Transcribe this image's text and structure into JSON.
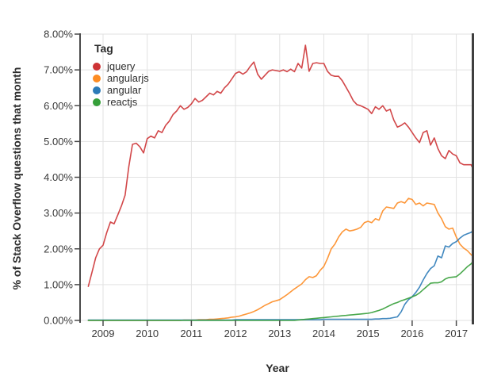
{
  "figure": {
    "background": "#ffffff",
    "colors": {
      "grid": "#e2e2e2",
      "axis_spine": "#4a4a4a",
      "right_border": "#3f3f3f",
      "tick_label_text": "#3a3a3a",
      "title_text": "#2b2b2b"
    }
  },
  "chart_data": {
    "type": "line",
    "title": "",
    "xlabel": "Year",
    "ylabel": "% of Stack Overflow questions that month",
    "legend_title": "Tag",
    "legend_position": "top-left-inside",
    "grid": true,
    "ylim": [
      0,
      8
    ],
    "xlim_years": [
      2008.51,
      2017.42
    ],
    "y_tick_labels": [
      "0.00%",
      "1.00%",
      "2.00%",
      "3.00%",
      "4.00%",
      "5.00%",
      "6.00%",
      "7.00%",
      "8.00%"
    ],
    "x_tick_labels": [
      "2009",
      "2010",
      "2011",
      "2012",
      "2013",
      "2014",
      "2015",
      "2016",
      "2017"
    ],
    "x_unit": "month",
    "x_start": "2008-09",
    "x_end": "2017-06",
    "series": [
      {
        "name": "jquery",
        "color": "#cd3335",
        "values": [
          0.95,
          1.35,
          1.75,
          2.0,
          2.1,
          2.45,
          2.75,
          2.7,
          2.95,
          3.2,
          3.5,
          4.3,
          4.92,
          4.95,
          4.85,
          4.68,
          5.08,
          5.15,
          5.1,
          5.3,
          5.25,
          5.45,
          5.57,
          5.75,
          5.85,
          6.0,
          5.9,
          5.95,
          6.05,
          6.2,
          6.1,
          6.15,
          6.25,
          6.35,
          6.3,
          6.4,
          6.35,
          6.5,
          6.6,
          6.75,
          6.9,
          6.95,
          6.88,
          6.95,
          7.1,
          7.22,
          6.88,
          6.74,
          6.85,
          6.96,
          7.0,
          6.98,
          6.96,
          7.0,
          6.95,
          7.02,
          6.95,
          7.18,
          7.05,
          7.69,
          6.96,
          7.18,
          7.2,
          7.18,
          7.18,
          6.96,
          6.85,
          6.82,
          6.82,
          6.7,
          6.52,
          6.34,
          6.14,
          6.03,
          6.0,
          5.95,
          5.9,
          5.78,
          5.97,
          5.9,
          6.0,
          5.85,
          5.9,
          5.6,
          5.4,
          5.45,
          5.52,
          5.4,
          5.25,
          5.1,
          4.97,
          5.25,
          5.3,
          4.9,
          5.1,
          4.8,
          4.6,
          4.52,
          4.75,
          4.65,
          4.6,
          4.4,
          4.35,
          4.35,
          4.35,
          4.15
        ]
      },
      {
        "name": "angularjs",
        "color": "#fd8c23",
        "values": [
          0,
          0,
          0,
          0,
          0,
          0,
          0,
          0,
          0,
          0,
          0,
          0,
          0,
          0,
          0,
          0,
          0,
          0,
          0,
          0,
          0,
          0,
          0,
          0,
          0,
          0,
          0.01,
          0.01,
          0.01,
          0.01,
          0.02,
          0.02,
          0.02,
          0.03,
          0.03,
          0.04,
          0.05,
          0.06,
          0.07,
          0.09,
          0.1,
          0.12,
          0.15,
          0.18,
          0.21,
          0.25,
          0.3,
          0.36,
          0.42,
          0.47,
          0.52,
          0.55,
          0.58,
          0.65,
          0.72,
          0.8,
          0.88,
          0.95,
          1.02,
          1.14,
          1.22,
          1.2,
          1.25,
          1.4,
          1.51,
          1.73,
          2.0,
          2.13,
          2.33,
          2.47,
          2.55,
          2.5,
          2.52,
          2.55,
          2.6,
          2.73,
          2.77,
          2.73,
          2.84,
          2.8,
          3.06,
          3.17,
          3.15,
          3.13,
          3.28,
          3.32,
          3.28,
          3.41,
          3.38,
          3.24,
          3.28,
          3.2,
          3.28,
          3.26,
          3.24,
          3.0,
          2.84,
          2.62,
          2.55,
          2.58,
          2.33,
          2.13,
          2.02,
          1.95,
          1.84,
          1.73
        ]
      },
      {
        "name": "angular",
        "color": "#2c7bb8",
        "values": [
          0.01,
          0.01,
          0.01,
          0.01,
          0.01,
          0.01,
          0.01,
          0.01,
          0.01,
          0.01,
          0.01,
          0.01,
          0.01,
          0.01,
          0.01,
          0.01,
          0.01,
          0.01,
          0.01,
          0.01,
          0.01,
          0.01,
          0.01,
          0.01,
          0.01,
          0.01,
          0.01,
          0.01,
          0.01,
          0.01,
          0.01,
          0.01,
          0.01,
          0.01,
          0.01,
          0.01,
          0.01,
          0.01,
          0.01,
          0.01,
          0.02,
          0.02,
          0.02,
          0.02,
          0.02,
          0.02,
          0.02,
          0.02,
          0.02,
          0.02,
          0.02,
          0.02,
          0.02,
          0.02,
          0.02,
          0.02,
          0.02,
          0.02,
          0.02,
          0.02,
          0.02,
          0.02,
          0.02,
          0.02,
          0.03,
          0.03,
          0.03,
          0.03,
          0.03,
          0.03,
          0.03,
          0.03,
          0.03,
          0.03,
          0.03,
          0.03,
          0.03,
          0.03,
          0.04,
          0.04,
          0.05,
          0.05,
          0.06,
          0.08,
          0.1,
          0.24,
          0.45,
          0.58,
          0.66,
          0.78,
          0.93,
          1.13,
          1.31,
          1.45,
          1.53,
          1.8,
          1.75,
          2.08,
          2.05,
          2.15,
          2.2,
          2.3,
          2.38,
          2.42,
          2.46,
          2.55
        ]
      },
      {
        "name": "reactjs",
        "color": "#359f39",
        "values": [
          0,
          0,
          0,
          0,
          0,
          0,
          0,
          0,
          0,
          0,
          0,
          0,
          0,
          0,
          0,
          0,
          0,
          0,
          0,
          0,
          0,
          0,
          0,
          0,
          0,
          0,
          0,
          0,
          0,
          0,
          0,
          0,
          0,
          0,
          0,
          0,
          0,
          0,
          0,
          0,
          0,
          0,
          0,
          0,
          0,
          0,
          0,
          0,
          0,
          0,
          0,
          0,
          0,
          0,
          0,
          0,
          0,
          0.01,
          0.02,
          0.03,
          0.04,
          0.05,
          0.06,
          0.07,
          0.08,
          0.09,
          0.1,
          0.11,
          0.12,
          0.13,
          0.14,
          0.15,
          0.16,
          0.17,
          0.18,
          0.19,
          0.2,
          0.22,
          0.25,
          0.28,
          0.32,
          0.37,
          0.42,
          0.47,
          0.5,
          0.55,
          0.58,
          0.62,
          0.66,
          0.7,
          0.77,
          0.86,
          0.95,
          1.04,
          1.05,
          1.05,
          1.08,
          1.16,
          1.2,
          1.21,
          1.22,
          1.3,
          1.4,
          1.5,
          1.58,
          1.7
        ]
      }
    ]
  }
}
